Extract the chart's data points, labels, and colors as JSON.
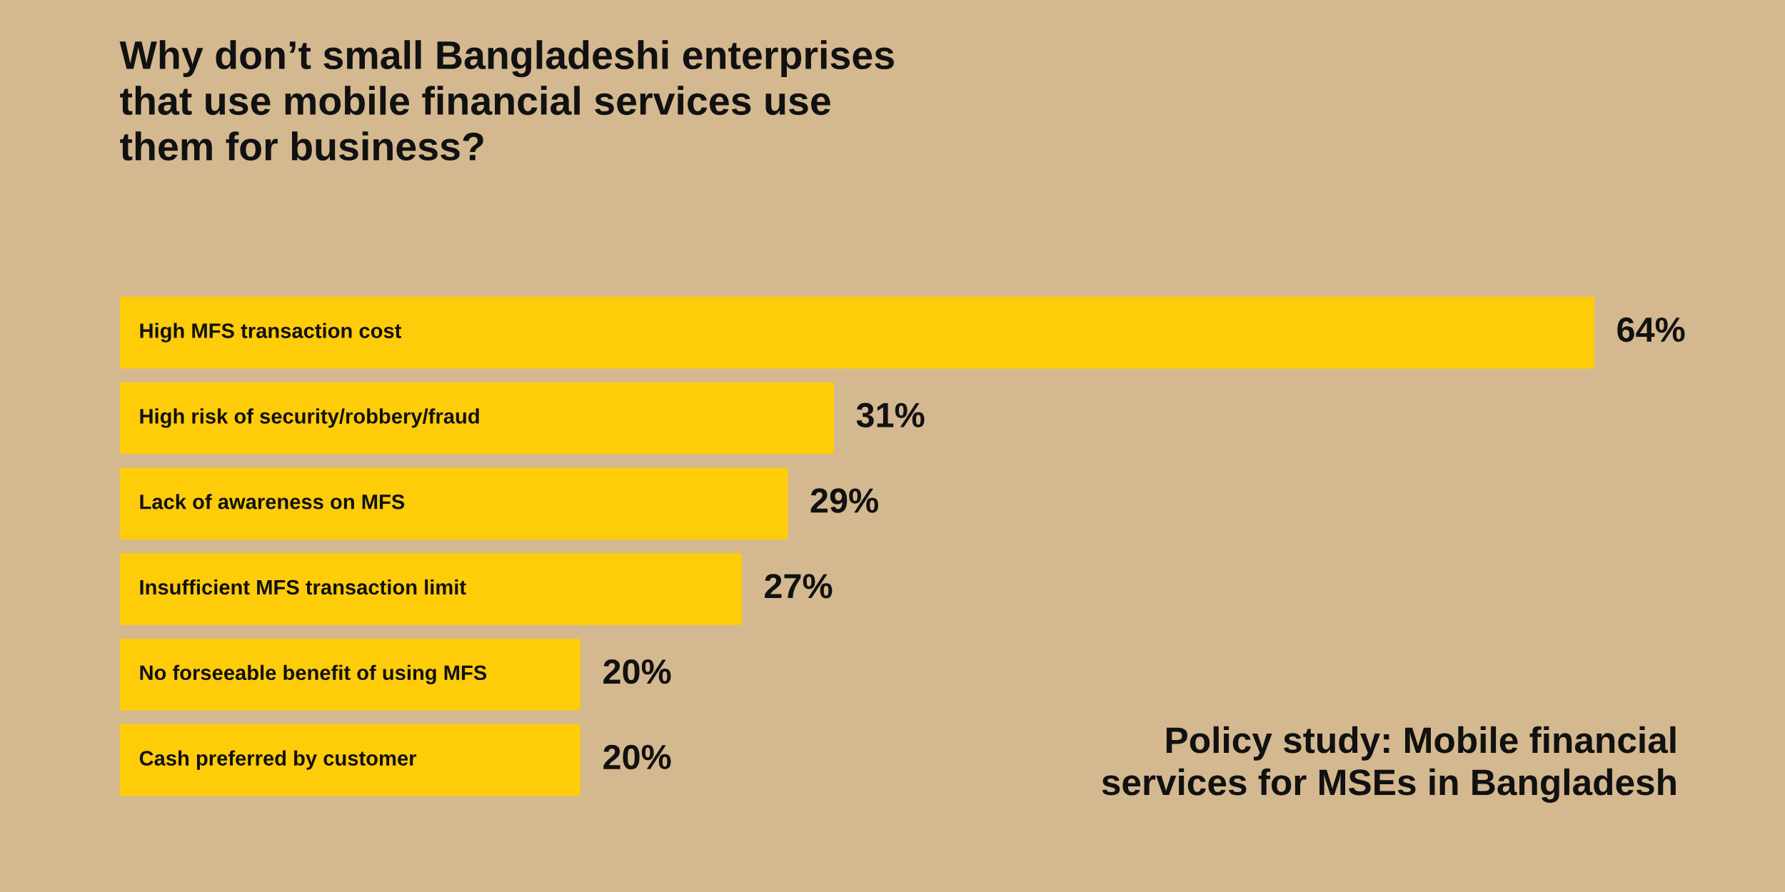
{
  "chart_data": {
    "type": "bar",
    "orientation": "horizontal",
    "title": "Why don’t small Bangladeshi enterprises\nthat use mobile financial services use\nthem for business?",
    "categories": [
      "High MFS transaction cost",
      "High risk of security/robbery/fraud",
      "Lack of awareness on MFS",
      "Insufficient MFS transaction limit",
      "No forseeable benefit of using MFS",
      "Cash preferred by customer"
    ],
    "values": [
      64,
      31,
      29,
      27,
      20,
      20
    ],
    "value_labels": [
      "64%",
      "31%",
      "29%",
      "27%",
      "20%",
      "20%"
    ],
    "color": "#ffcc0a",
    "annotations": [
      "Policy study: Mobile financial\nservices for MSEs in Bangladesh"
    ],
    "legend": false,
    "tick_labels": false
  }
}
